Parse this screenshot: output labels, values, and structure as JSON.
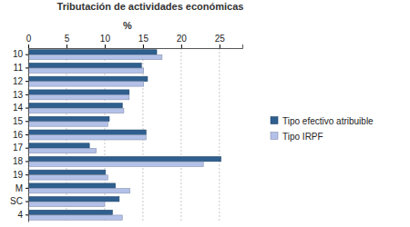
{
  "chart_data": {
    "type": "bar",
    "orientation": "horizontal",
    "title": "Tributación de actividades económicas",
    "xlabel": "%",
    "categories": [
      "10",
      "11",
      "12",
      "13",
      "14",
      "15",
      "16",
      "17",
      "18",
      "19",
      "M",
      "SC",
      "4"
    ],
    "series": [
      {
        "name": "Tipo efectivo atribuible",
        "color": "#2f5f8e",
        "values": [
          16.8,
          14.8,
          15.6,
          13.2,
          12.3,
          10.6,
          15.4,
          8.0,
          25.2,
          10.1,
          11.4,
          11.9,
          11.0
        ]
      },
      {
        "name": "Tipo IRPF",
        "color": "#b3c1e8",
        "values": [
          17.5,
          15.1,
          15.1,
          13.2,
          12.5,
          10.4,
          15.4,
          8.9,
          22.9,
          10.4,
          13.3,
          10.0,
          12.3
        ]
      }
    ],
    "xlim": [
      0,
      28
    ],
    "xticks": [
      0,
      5,
      10,
      15,
      20,
      25
    ],
    "grid": true,
    "legend": "right"
  }
}
